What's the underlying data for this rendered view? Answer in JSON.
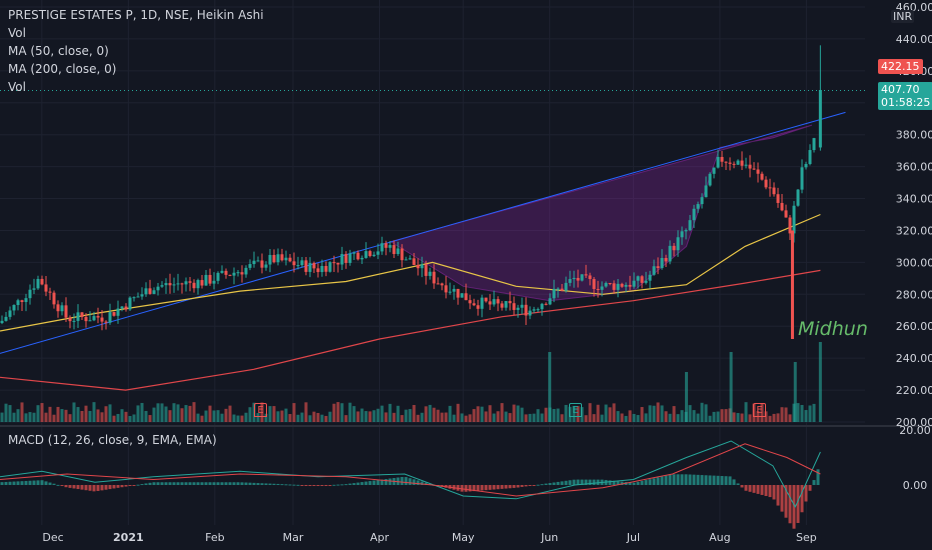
{
  "header": {
    "title": "PRESTIGE ESTATES P, 1D, NSE, Heikin Ashi",
    "indicators": [
      "Vol",
      "MA (50, close, 0)",
      "MA (200, close, 0)",
      "Vol"
    ]
  },
  "axis_unit": "INR",
  "price_tags": {
    "high_label": "422.15",
    "last_price": "407.70",
    "countdown": "01:58:25"
  },
  "signature": "Midhun",
  "earnings_badges": [
    {
      "label": "E",
      "x_date": "2020-11-05",
      "color": "#ef5350"
    },
    {
      "label": "E",
      "x_date": "2021-01-28",
      "color": "#26a69a"
    },
    {
      "label": "E",
      "x_date": "2021-04-30",
      "color": "#ef5350"
    }
  ],
  "macd_label": "MACD (12, 26, close, 9, EMA, EMA)",
  "colors": {
    "background": "#131722",
    "up": "#26a69a",
    "down": "#ef5350",
    "ma50": "#e8c547",
    "ma200": "#e0464a",
    "trendline": "#2962ff",
    "pattern_fill": "#9c27b0",
    "macd_line": "#26a69a",
    "signal_line": "#e0464a"
  },
  "chart_data": [
    {
      "type": "candlestick",
      "title": "PRESTIGE ESTATES P, 1D, NSE, Heikin Ashi",
      "ylim": [
        200,
        460
      ],
      "y_ticks": [
        200.0,
        220.0,
        240.0,
        260.0,
        280.0,
        300.0,
        320.0,
        340.0,
        360.0,
        380.0,
        400.0,
        420.0,
        440.0,
        460.0
      ],
      "x_tick_labels": [
        "Dec",
        "2021",
        "Feb",
        "Mar",
        "Apr",
        "May",
        "Jun",
        "Jul",
        "Aug",
        "Sep"
      ],
      "grid": true,
      "price_path": [
        {
          "x": "2020-11-16",
          "y": 262
        },
        {
          "x": "2020-11-30",
          "y": 290
        },
        {
          "x": "2020-12-10",
          "y": 265
        },
        {
          "x": "2020-12-24",
          "y": 266
        },
        {
          "x": "2021-01-10",
          "y": 285
        },
        {
          "x": "2021-01-28",
          "y": 288
        },
        {
          "x": "2021-02-10",
          "y": 295
        },
        {
          "x": "2021-02-22",
          "y": 302
        },
        {
          "x": "2021-03-10",
          "y": 296
        },
        {
          "x": "2021-03-22",
          "y": 305
        },
        {
          "x": "2021-04-05",
          "y": 310
        },
        {
          "x": "2021-04-20",
          "y": 290
        },
        {
          "x": "2021-05-05",
          "y": 275
        },
        {
          "x": "2021-05-25",
          "y": 270
        },
        {
          "x": "2021-06-10",
          "y": 290
        },
        {
          "x": "2021-06-20",
          "y": 285
        },
        {
          "x": "2021-07-05",
          "y": 288
        },
        {
          "x": "2021-07-20",
          "y": 320
        },
        {
          "x": "2021-08-01",
          "y": 365
        },
        {
          "x": "2021-08-10",
          "y": 362
        },
        {
          "x": "2021-08-20",
          "y": 345
        },
        {
          "x": "2021-08-26",
          "y": 320
        },
        {
          "x": "2021-08-30",
          "y": 355
        },
        {
          "x": "2021-09-03",
          "y": 370
        },
        {
          "x": "2021-09-06",
          "y": 407.7
        }
      ],
      "ma50": [
        {
          "x": "2020-11-16",
          "y": 257
        },
        {
          "x": "2020-12-20",
          "y": 268
        },
        {
          "x": "2021-02-10",
          "y": 282
        },
        {
          "x": "2021-03-20",
          "y": 288
        },
        {
          "x": "2021-04-20",
          "y": 300
        },
        {
          "x": "2021-05-20",
          "y": 285
        },
        {
          "x": "2021-06-20",
          "y": 280
        },
        {
          "x": "2021-07-20",
          "y": 286
        },
        {
          "x": "2021-08-10",
          "y": 310
        },
        {
          "x": "2021-09-06",
          "y": 330
        }
      ],
      "ma200": [
        {
          "x": "2020-11-16",
          "y": 228
        },
        {
          "x": "2020-12-31",
          "y": 220
        },
        {
          "x": "2021-02-15",
          "y": 233
        },
        {
          "x": "2021-04-01",
          "y": 252
        },
        {
          "x": "2021-05-15",
          "y": 266
        },
        {
          "x": "2021-07-01",
          "y": 276
        },
        {
          "x": "2021-08-10",
          "y": 287
        },
        {
          "x": "2021-09-06",
          "y": 295
        }
      ],
      "trendline": [
        {
          "x": "2020-11-16",
          "y": 243
        },
        {
          "x": "2021-09-15",
          "y": 394
        }
      ],
      "cup_pattern": [
        {
          "x": "2021-04-05",
          "y": 313
        },
        {
          "x": "2021-05-01",
          "y": 285
        },
        {
          "x": "2021-06-01",
          "y": 276
        },
        {
          "x": "2021-07-01",
          "y": 282
        },
        {
          "x": "2021-07-20",
          "y": 310
        },
        {
          "x": "2021-08-01",
          "y": 372
        },
        {
          "x": "2021-08-20",
          "y": 378
        },
        {
          "x": "2021-09-03",
          "y": 386
        }
      ],
      "annotations": [
        "422.15",
        "407.70",
        "01:58:25",
        "Midhun"
      ]
    },
    {
      "type": "bar",
      "title": "MACD (12, 26, close, 9, EMA, EMA)",
      "ylim": [
        -20,
        20
      ],
      "y_ticks": [
        20.0,
        0.0
      ],
      "macd_path": [
        {
          "x": "2020-11-16",
          "y": 3
        },
        {
          "x": "2020-12-01",
          "y": 5
        },
        {
          "x": "2020-12-20",
          "y": 1
        },
        {
          "x": "2021-01-10",
          "y": 3
        },
        {
          "x": "2021-02-10",
          "y": 5
        },
        {
          "x": "2021-03-10",
          "y": 3
        },
        {
          "x": "2021-04-10",
          "y": 4
        },
        {
          "x": "2021-05-01",
          "y": -4
        },
        {
          "x": "2021-05-20",
          "y": -5
        },
        {
          "x": "2021-06-10",
          "y": 0
        },
        {
          "x": "2021-07-01",
          "y": 2
        },
        {
          "x": "2021-07-20",
          "y": 10
        },
        {
          "x": "2021-08-05",
          "y": 16
        },
        {
          "x": "2021-08-20",
          "y": 7
        },
        {
          "x": "2021-08-28",
          "y": -8
        },
        {
          "x": "2021-09-06",
          "y": 12
        }
      ],
      "signal_path": [
        {
          "x": "2020-11-16",
          "y": 2
        },
        {
          "x": "2020-12-10",
          "y": 4
        },
        {
          "x": "2021-01-10",
          "y": 2
        },
        {
          "x": "2021-02-10",
          "y": 4
        },
        {
          "x": "2021-03-20",
          "y": 3
        },
        {
          "x": "2021-04-20",
          "y": 0
        },
        {
          "x": "2021-05-20",
          "y": -4
        },
        {
          "x": "2021-06-20",
          "y": -1
        },
        {
          "x": "2021-07-15",
          "y": 4
        },
        {
          "x": "2021-08-10",
          "y": 15
        },
        {
          "x": "2021-08-25",
          "y": 10
        },
        {
          "x": "2021-09-06",
          "y": 4
        }
      ]
    }
  ]
}
